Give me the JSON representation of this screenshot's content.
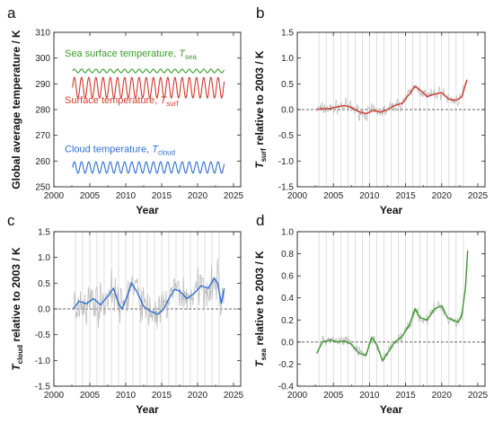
{
  "panel_labels": [
    "a",
    "b",
    "c",
    "d"
  ],
  "colors": {
    "sea": "#3a9a2a",
    "surf": "#d03a2e",
    "cloud": "#2f6fd0",
    "raw": "#b8b8b8",
    "zero": "#333333"
  },
  "chart_data": [
    {
      "panel": "a",
      "type": "line",
      "title": "",
      "xlabel": "Year",
      "ylabel": "Global average temperature / K",
      "xlim": [
        2000,
        2026
      ],
      "ylim": [
        250,
        310
      ],
      "xticks": [
        2000,
        2005,
        2010,
        2015,
        2020,
        2025
      ],
      "yticks": [
        250,
        260,
        270,
        280,
        290,
        300,
        310
      ],
      "grid": false,
      "series": [
        {
          "key": "sea",
          "name": "Sea surface temperature, Tsea",
          "name_main": "Sea surface temperature, ",
          "name_sym": "T",
          "name_sub": "sea",
          "x_start": 2002.6,
          "x_end": 2023.7,
          "mean": 295.0,
          "amplitude": 0.7,
          "period": 1.0
        },
        {
          "key": "surf",
          "name": "Surface temperature, Tsurf",
          "name_main": "Surface temperature, ",
          "name_sym": "T",
          "name_sub": "surf",
          "x_start": 2002.6,
          "x_end": 2023.7,
          "mean": 288.5,
          "amplitude": 4.0,
          "period": 1.0
        },
        {
          "key": "cloud",
          "name": "Cloud temperature, Tcloud",
          "name_main": "Cloud temperature, ",
          "name_sym": "T",
          "name_sub": "cloud",
          "x_start": 2002.6,
          "x_end": 2023.7,
          "mean": 257.5,
          "amplitude": 2.2,
          "period": 1.0
        }
      ]
    },
    {
      "panel": "b",
      "type": "line",
      "title": "",
      "xlabel": "Year",
      "ylabel": "Tsurf relative to 2003 / K",
      "ylabel_sym": "T",
      "ylabel_sub": "surf",
      "ylabel_rest": " relative to 2003 / K",
      "xlim": [
        2000,
        2026
      ],
      "ylim": [
        -1.5,
        1.5
      ],
      "xticks": [
        2000,
        2005,
        2010,
        2015,
        2020,
        2025
      ],
      "yticks": [
        -1.5,
        -1.0,
        -0.5,
        0.0,
        0.5,
        1.0,
        1.5
      ],
      "grid": "vertical yearly",
      "reference_line": 0,
      "raw_noise": 0.12,
      "series": [
        {
          "key": "surf",
          "name": "",
          "x": [
            2002.7,
            2003.5,
            2004.5,
            2005.5,
            2006.5,
            2007.5,
            2008.5,
            2009.5,
            2010.5,
            2011.5,
            2012.5,
            2013.5,
            2014.5,
            2015.5,
            2016.3,
            2017.0,
            2018.0,
            2019.0,
            2020.0,
            2021.0,
            2022.0,
            2022.8,
            2023.5
          ],
          "y": [
            0.0,
            0.02,
            0.02,
            0.05,
            0.08,
            0.04,
            -0.04,
            -0.08,
            -0.02,
            -0.05,
            0.0,
            0.08,
            0.12,
            0.3,
            0.45,
            0.38,
            0.25,
            0.3,
            0.33,
            0.2,
            0.18,
            0.25,
            0.58
          ]
        }
      ]
    },
    {
      "panel": "c",
      "type": "line",
      "title": "",
      "xlabel": "Year",
      "ylabel": "Tcloud relative to 2003 / K",
      "ylabel_sym": "T",
      "ylabel_sub": "cloud",
      "ylabel_rest": " relative to 2003 / K",
      "xlim": [
        2000,
        2026
      ],
      "ylim": [
        -1.5,
        1.5
      ],
      "xticks": [
        2000,
        2005,
        2010,
        2015,
        2020,
        2025
      ],
      "yticks": [
        -1.5,
        -1.0,
        -0.5,
        0.0,
        0.5,
        1.0,
        1.5
      ],
      "grid": "vertical yearly",
      "reference_line": 0,
      "raw_noise": 0.35,
      "series": [
        {
          "key": "cloud",
          "name": "",
          "x": [
            2002.7,
            2003.5,
            2004.5,
            2005.5,
            2006.5,
            2007.5,
            2008.3,
            2009.0,
            2009.5,
            2010.2,
            2010.8,
            2011.5,
            2012.5,
            2013.5,
            2014.5,
            2015.3,
            2016.0,
            2016.8,
            2017.5,
            2018.5,
            2019.5,
            2020.5,
            2021.5,
            2022.3,
            2022.8,
            2023.3,
            2023.7
          ],
          "y": [
            0.0,
            0.15,
            0.1,
            0.2,
            0.08,
            0.25,
            0.4,
            0.1,
            0.0,
            0.25,
            0.5,
            0.35,
            0.05,
            -0.05,
            -0.1,
            0.0,
            0.2,
            0.38,
            0.35,
            0.2,
            0.3,
            0.45,
            0.4,
            0.6,
            0.5,
            0.1,
            0.4
          ]
        }
      ]
    },
    {
      "panel": "d",
      "type": "line",
      "title": "",
      "xlabel": "Year",
      "ylabel": "Tsea relative to 2003 / K",
      "ylabel_sym": "T",
      "ylabel_sub": "sea",
      "ylabel_rest": " relative to 2003 / K",
      "xlim": [
        2000,
        2026
      ],
      "ylim": [
        -0.4,
        1.0
      ],
      "xticks": [
        2000,
        2005,
        2010,
        2015,
        2020,
        2025
      ],
      "yticks": [
        -0.4,
        -0.2,
        0.0,
        0.2,
        0.4,
        0.6,
        0.8,
        1.0
      ],
      "grid": "vertical yearly",
      "reference_line": 0,
      "raw_noise": 0.05,
      "series": [
        {
          "key": "sea",
          "name": "",
          "x": [
            2002.7,
            2003.5,
            2004.5,
            2005.5,
            2006.5,
            2007.5,
            2008.5,
            2009.5,
            2010.3,
            2011.0,
            2011.8,
            2012.5,
            2013.5,
            2014.5,
            2015.5,
            2016.3,
            2017.0,
            2018.0,
            2019.0,
            2020.0,
            2020.8,
            2021.5,
            2022.3,
            2022.8,
            2023.3,
            2023.6
          ],
          "y": [
            -0.1,
            0.0,
            0.02,
            0.0,
            0.01,
            -0.02,
            -0.1,
            -0.12,
            0.04,
            -0.02,
            -0.17,
            -0.1,
            0.0,
            0.05,
            0.15,
            0.3,
            0.22,
            0.2,
            0.3,
            0.33,
            0.22,
            0.2,
            0.18,
            0.25,
            0.5,
            0.83
          ]
        }
      ]
    }
  ]
}
